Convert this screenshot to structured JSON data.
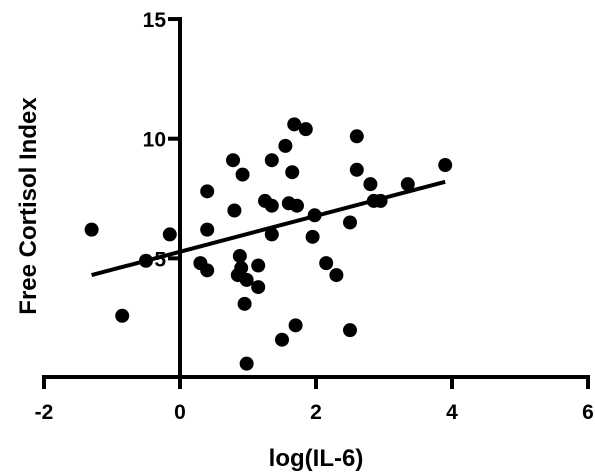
{
  "chart_data": {
    "type": "scatter",
    "xlabel": "log(IL-6)",
    "ylabel": "Free Cortisol Index",
    "xlim": [
      -2,
      6
    ],
    "ylim": [
      0,
      15
    ],
    "x_ticks": [
      -2,
      0,
      2,
      4,
      6
    ],
    "y_ticks": [
      5,
      10,
      15
    ],
    "x_tick_labels": [
      "-2",
      "0",
      "2",
      "4",
      "6"
    ],
    "y_tick_labels": [
      "5",
      "10",
      "15"
    ],
    "grid": false,
    "points": [
      {
        "x": -1.3,
        "y": 6.2
      },
      {
        "x": -0.85,
        "y": 2.6
      },
      {
        "x": -0.5,
        "y": 4.9
      },
      {
        "x": -0.15,
        "y": 6.0
      },
      {
        "x": 0.3,
        "y": 4.8
      },
      {
        "x": 0.4,
        "y": 4.5
      },
      {
        "x": 0.4,
        "y": 6.2
      },
      {
        "x": 0.4,
        "y": 7.8
      },
      {
        "x": 0.78,
        "y": 9.1
      },
      {
        "x": 0.8,
        "y": 7.0
      },
      {
        "x": 0.85,
        "y": 4.3
      },
      {
        "x": 0.88,
        "y": 5.1
      },
      {
        "x": 0.9,
        "y": 4.6
      },
      {
        "x": 0.92,
        "y": 8.5
      },
      {
        "x": 0.95,
        "y": 3.1
      },
      {
        "x": 0.98,
        "y": 4.1
      },
      {
        "x": 0.98,
        "y": 0.6
      },
      {
        "x": 1.15,
        "y": 4.7
      },
      {
        "x": 1.15,
        "y": 3.8
      },
      {
        "x": 1.25,
        "y": 7.4
      },
      {
        "x": 1.35,
        "y": 7.2
      },
      {
        "x": 1.35,
        "y": 6.0
      },
      {
        "x": 1.35,
        "y": 9.1
      },
      {
        "x": 1.5,
        "y": 1.6
      },
      {
        "x": 1.55,
        "y": 9.7
      },
      {
        "x": 1.6,
        "y": 7.3
      },
      {
        "x": 1.65,
        "y": 8.6
      },
      {
        "x": 1.68,
        "y": 10.6
      },
      {
        "x": 1.7,
        "y": 2.2
      },
      {
        "x": 1.72,
        "y": 7.2
      },
      {
        "x": 1.85,
        "y": 10.4
      },
      {
        "x": 1.95,
        "y": 5.9
      },
      {
        "x": 1.98,
        "y": 6.8
      },
      {
        "x": 2.15,
        "y": 4.8
      },
      {
        "x": 2.3,
        "y": 4.3
      },
      {
        "x": 2.5,
        "y": 6.5
      },
      {
        "x": 2.5,
        "y": 2.0
      },
      {
        "x": 2.6,
        "y": 8.7
      },
      {
        "x": 2.6,
        "y": 10.1
      },
      {
        "x": 2.8,
        "y": 8.1
      },
      {
        "x": 2.85,
        "y": 7.4
      },
      {
        "x": 2.95,
        "y": 7.4
      },
      {
        "x": 3.35,
        "y": 8.1
      },
      {
        "x": 3.9,
        "y": 8.9
      }
    ],
    "regression_line": {
      "x": [
        -1.3,
        3.9
      ],
      "y": [
        4.3,
        8.2
      ]
    }
  }
}
